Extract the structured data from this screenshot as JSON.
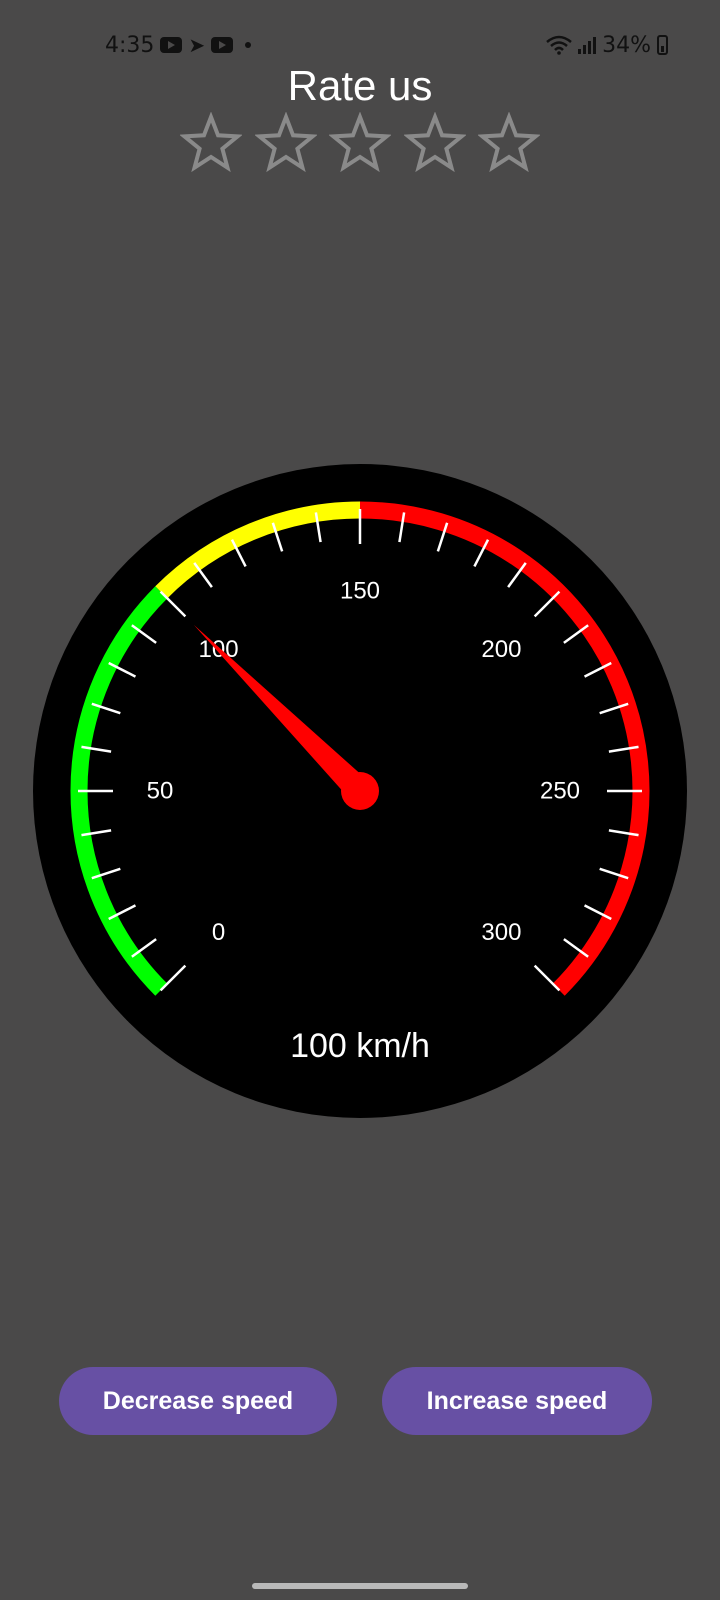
{
  "status_bar": {
    "time": "4:35",
    "battery_percent": "34%",
    "left_icons": [
      "youtube-icon",
      "telegram-icon",
      "youtube-icon",
      "dot-icon"
    ],
    "right_icons": [
      "wifi-icon",
      "signal-icon",
      "battery-icon"
    ]
  },
  "rating": {
    "title": "Rate us",
    "max_stars": 5,
    "selected": 0,
    "star_outline_color": "#8a8a8a"
  },
  "speedometer": {
    "min": 0,
    "max": 300,
    "value": 100,
    "unit_label": "km/h",
    "readout": "100 km/h",
    "tick_step": 10,
    "label_step": 50,
    "tick_labels": [
      "0",
      "50",
      "100",
      "150",
      "200",
      "250",
      "300"
    ],
    "zones": [
      {
        "from": 0,
        "to": 100,
        "color": "#00ff00"
      },
      {
        "from": 100,
        "to": 150,
        "color": "#ffff00"
      },
      {
        "from": 150,
        "to": 300,
        "color": "#ff0000"
      }
    ],
    "needle_color": "#ff0000",
    "dial_color": "#000000",
    "tick_color": "#ffffff"
  },
  "buttons": {
    "decrease_label": "Decrease speed",
    "increase_label": "Increase speed",
    "color": "#6750a4"
  }
}
